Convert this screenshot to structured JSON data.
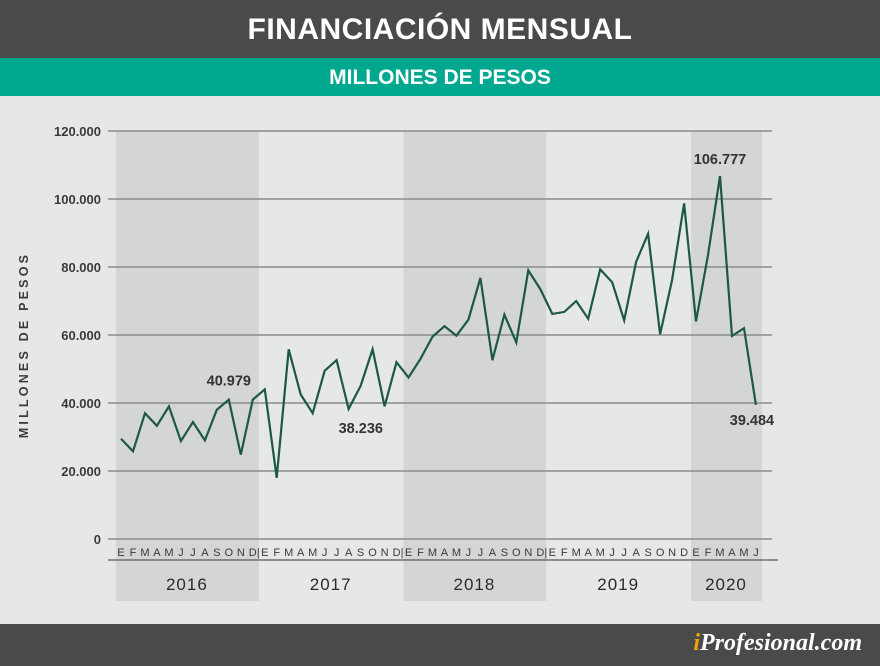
{
  "header": {
    "title": "FINANCIACIÓN MENSUAL"
  },
  "subheader": {
    "title": "MILLONES DE PESOS"
  },
  "footer": {
    "brand_prefix": "i",
    "brand_rest": "Profesional.com"
  },
  "colors": {
    "header": "#4a4a4a",
    "accent": "#00a88f",
    "line": "#1d5940",
    "band": "#d4d5d7",
    "background": "#e6e7e8"
  },
  "chart_data": {
    "type": "line",
    "ylabel": "MILLONES DE PESOS",
    "ylim": [
      0,
      120000
    ],
    "yticks": [
      0,
      20000,
      40000,
      60000,
      80000,
      100000,
      120000
    ],
    "ytick_labels": [
      "0",
      "20.000",
      "40.000",
      "60.000",
      "80.000",
      "100.000",
      "120.000"
    ],
    "years": [
      {
        "label": "2016",
        "months": [
          "E",
          "F",
          "M",
          "A",
          "M",
          "J",
          "J",
          "A",
          "S",
          "O",
          "N",
          "D"
        ],
        "shaded": true
      },
      {
        "label": "2017",
        "months": [
          "E",
          "F",
          "M",
          "A",
          "M",
          "J",
          "J",
          "A",
          "S",
          "O",
          "N",
          "D"
        ],
        "shaded": false
      },
      {
        "label": "2018",
        "months": [
          "E",
          "F",
          "M",
          "A",
          "M",
          "J",
          "J",
          "A",
          "S",
          "O",
          "N",
          "D"
        ],
        "shaded": true
      },
      {
        "label": "2019",
        "months": [
          "E",
          "F",
          "M",
          "A",
          "M",
          "J",
          "J",
          "A",
          "S",
          "O",
          "N",
          "D"
        ],
        "shaded": false
      },
      {
        "label": "2020",
        "months": [
          "E",
          "F",
          "M",
          "A",
          "M",
          "J"
        ],
        "shaded": true
      }
    ],
    "separator": "|",
    "values": [
      29500,
      25800,
      37000,
      33300,
      39000,
      28800,
      34400,
      29000,
      38000,
      40979,
      24800,
      41000,
      44000,
      18000,
      55800,
      42500,
      37000,
      49500,
      52600,
      38236,
      45000,
      55800,
      39000,
      52000,
      47500,
      53000,
      59500,
      62600,
      59800,
      64500,
      76800,
      52600,
      66000,
      57800,
      79000,
      73500,
      66200,
      66800,
      70000,
      64800,
      79300,
      75500,
      64300,
      81500,
      89800,
      60200,
      76200,
      98700,
      64000,
      83500,
      106777,
      59700,
      62000,
      39484
    ],
    "annotations": [
      {
        "text": "40.979",
        "index": 9
      },
      {
        "text": "38.236",
        "index": 19
      },
      {
        "text": "106.777",
        "index": 50
      },
      {
        "text": "39.484",
        "index": 53
      }
    ]
  }
}
